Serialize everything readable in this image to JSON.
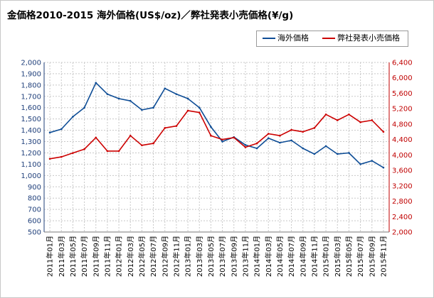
{
  "chart_data": {
    "type": "line",
    "title": "金価格2010-2015 海外価格(US$/oz)／弊社発表小売価格(¥/g)",
    "xlabel": "",
    "ylabel_left": "",
    "ylabel_right": "",
    "x": [
      "2011年01月",
      "2011年03月",
      "2011年05月",
      "2011年07月",
      "2011年09月",
      "2011年11月",
      "2012年01月",
      "2012年03月",
      "2012年05月",
      "2012年07月",
      "2012年09月",
      "2012年11月",
      "2013年01月",
      "2013年03月",
      "2013年05月",
      "2013年07月",
      "2013年09月",
      "2013年11月",
      "2014年01月",
      "2014年03月",
      "2014年05月",
      "2014年07月",
      "2014年09月",
      "2014年11月",
      "2015年01月",
      "2015年03月",
      "2015年05月",
      "2015年07月",
      "2015年09月",
      "2015年11月"
    ],
    "y_left": {
      "min": 500,
      "max": 2000,
      "step": 100,
      "tick_labels": [
        "500",
        "600",
        "700",
        "800",
        "900",
        "1,000",
        "1,100",
        "1,200",
        "1,300",
        "1,400",
        "1,500",
        "1,600",
        "1,700",
        "1,800",
        "1,900",
        "2,000"
      ]
    },
    "y_right": {
      "min": 2000,
      "max": 6400,
      "step": 400,
      "tick_labels": [
        "2,000",
        "2,400",
        "2,800",
        "3,200",
        "3,600",
        "4,000",
        "4,400",
        "4,800",
        "5,200",
        "5,600",
        "6,000",
        "6,400"
      ]
    },
    "grid": true,
    "legend_position": "top-right",
    "series": [
      {
        "name": "海外価格",
        "axis": "left",
        "color": "#0e4d96",
        "values": [
          1380,
          1410,
          1520,
          1600,
          1820,
          1720,
          1680,
          1660,
          1580,
          1600,
          1770,
          1720,
          1680,
          1600,
          1430,
          1300,
          1340,
          1270,
          1240,
          1330,
          1290,
          1310,
          1240,
          1190,
          1260,
          1190,
          1200,
          1100,
          1130,
          1070
        ]
      },
      {
        "name": "弊社発表小売価格",
        "axis": "right",
        "color": "#cc0000",
        "values": [
          3900,
          3950,
          4050,
          4150,
          4450,
          4100,
          4100,
          4500,
          4250,
          4300,
          4700,
          4750,
          5150,
          5100,
          4500,
          4400,
          4450,
          4200,
          4300,
          4550,
          4500,
          4650,
          4600,
          4700,
          5050,
          4900,
          5050,
          4850,
          4900,
          4600
        ]
      }
    ]
  }
}
